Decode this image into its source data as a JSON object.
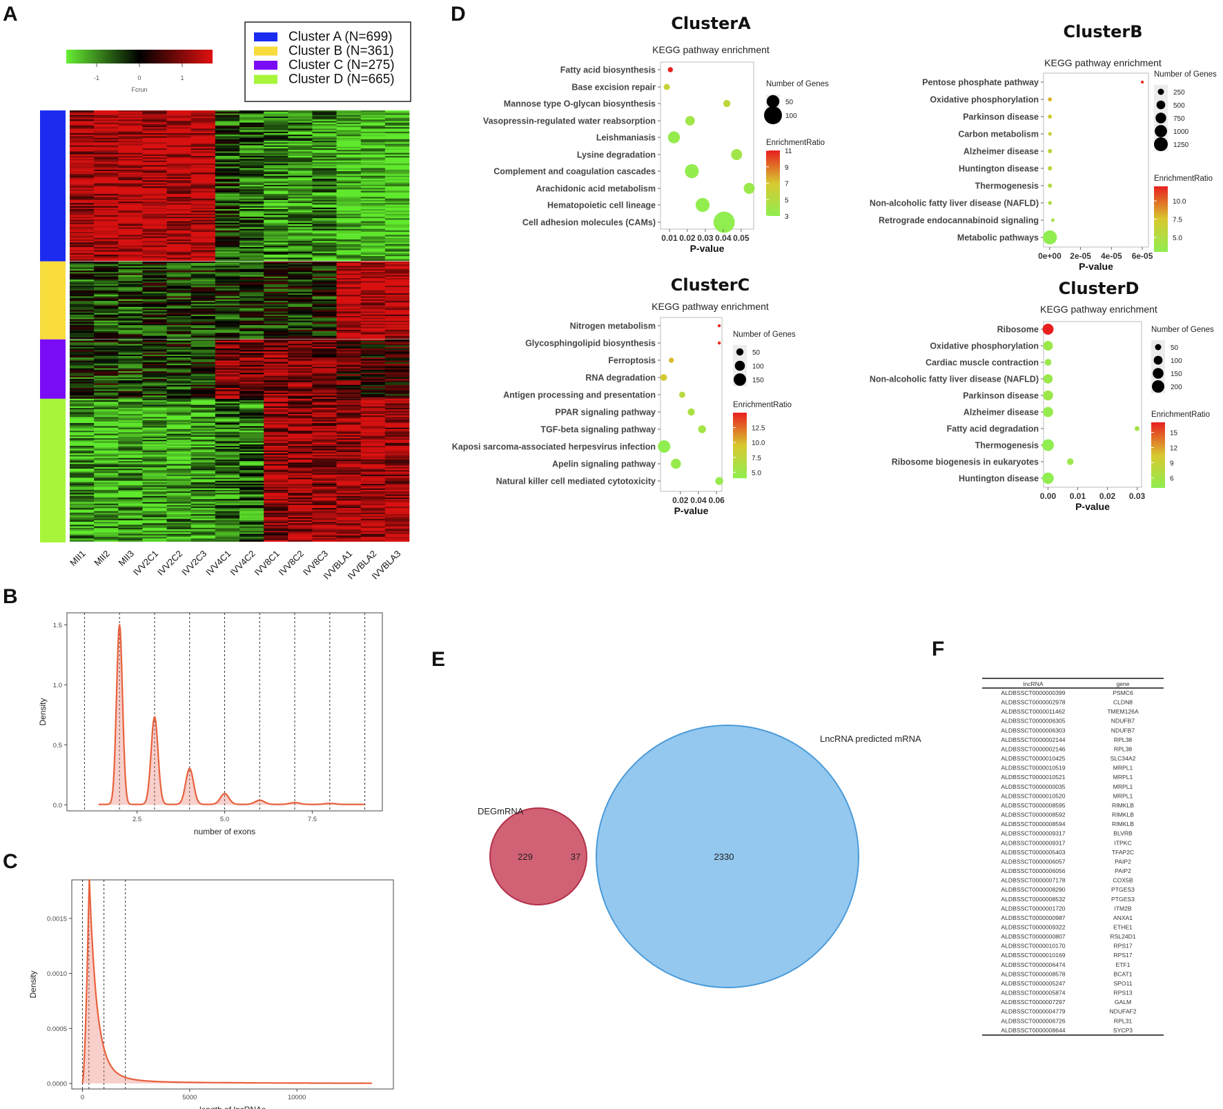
{
  "panels": {
    "A": "A",
    "B": "B",
    "C": "C",
    "D": "D",
    "E": "E",
    "F": "F"
  },
  "heatmap": {
    "scale_labels": [
      "-1",
      "0",
      "1"
    ],
    "scale_title": "Fcrun",
    "clusters": [
      {
        "name": "Cluster A (N=699)",
        "color": "#1b2cf0",
        "n": 699
      },
      {
        "name": "Cluster B (N=361)",
        "color": "#f7dc3c",
        "n": 361
      },
      {
        "name": "Cluster C (N=275)",
        "color": "#7a0cf5",
        "n": 275
      },
      {
        "name": "Cluster D (N=665)",
        "color": "#a6f53a",
        "n": 665
      }
    ],
    "samples": [
      "MII1",
      "MII2",
      "MII3",
      "IVV2C1",
      "IVV2C2",
      "IVV2C3",
      "IVV4C1",
      "IVV4C2",
      "IVV8C1",
      "IVV8C2",
      "IVV8C3",
      "IVVBLA1",
      "IVVBLA2",
      "IVVBLA3"
    ],
    "cluster_mean_pattern": [
      [
        0.8,
        0.85,
        0.9,
        0.85,
        0.9,
        0.9,
        -0.3,
        -0.4,
        -0.6,
        -0.6,
        -0.6,
        -0.9,
        -0.9,
        -0.9
      ],
      [
        -0.3,
        -0.3,
        -0.3,
        -0.2,
        -0.2,
        -0.2,
        -0.2,
        -0.2,
        -0.1,
        -0.1,
        -0.1,
        0.9,
        0.9,
        0.9
      ],
      [
        -0.2,
        -0.2,
        -0.2,
        -0.2,
        -0.2,
        -0.2,
        0.6,
        0.5,
        0.6,
        0.6,
        0.5,
        0.3,
        0.2,
        0.2
      ],
      [
        -0.7,
        -0.7,
        -0.7,
        -0.7,
        -0.7,
        -0.7,
        -0.5,
        -0.5,
        0.7,
        0.7,
        0.7,
        0.8,
        0.8,
        0.8
      ]
    ]
  },
  "chart_data": [
    {
      "type": "scatter",
      "id": "clusterA",
      "title": "ClusterA",
      "subtitle": "KEGG pathway enrichment",
      "xlabel": "P-value",
      "xlim": [
        0.005,
        0.057
      ],
      "xticks": [
        "0.01",
        "0.02",
        "0.03",
        "0.04",
        "0.05"
      ],
      "xtick_values": [
        0.01,
        0.02,
        0.03,
        0.04,
        0.05
      ],
      "points": [
        {
          "pathway": "Fatty acid biosynthesis",
          "p": 0.0105,
          "genes": 8,
          "ratio": 11
        },
        {
          "pathway": "Base excision repair",
          "p": 0.0085,
          "genes": 12,
          "ratio": 6
        },
        {
          "pathway": "Mannose type O-glycan biosynthesis",
          "p": 0.042,
          "genes": 16,
          "ratio": 5.5
        },
        {
          "pathway": "Vasopressin-regulated water reabsorption",
          "p": 0.0215,
          "genes": 28,
          "ratio": 4
        },
        {
          "pathway": "Leishmaniasis",
          "p": 0.0125,
          "genes": 45,
          "ratio": 3.3
        },
        {
          "pathway": "Lysine degradation",
          "p": 0.0475,
          "genes": 38,
          "ratio": 4
        },
        {
          "pathway": "Complement and coagulation cascades",
          "p": 0.0225,
          "genes": 60,
          "ratio": 3.2
        },
        {
          "pathway": "Arachidonic acid metabolism",
          "p": 0.0545,
          "genes": 38,
          "ratio": 3.6
        },
        {
          "pathway": "Hematopoietic cell lineage",
          "p": 0.0285,
          "genes": 60,
          "ratio": 3.1
        },
        {
          "pathway": "Cell adhesion molecules (CAMs)",
          "p": 0.0405,
          "genes": 140,
          "ratio": 3
        }
      ],
      "size_legend": {
        "title": "Number of Genes",
        "values": [
          50,
          100
        ]
      },
      "color_legend": {
        "title": "EnrichmentRatio",
        "ticks": [
          11,
          9,
          7,
          5,
          3
        ],
        "min": 3,
        "max": 11
      }
    },
    {
      "type": "scatter",
      "id": "clusterB",
      "title": "ClusterB",
      "subtitle": "KEGG pathway enrichment",
      "xlabel": "P-value",
      "xlim": [
        -4e-06,
        6.4e-05
      ],
      "xticks": [
        "0e+00",
        "2e-05",
        "4e-05",
        "6e-05"
      ],
      "xtick_values": [
        0,
        2e-05,
        4e-05,
        6e-05
      ],
      "points": [
        {
          "pathway": "Pentose phosphate pathway",
          "p": 6e-05,
          "genes": 30,
          "ratio": 11.5
        },
        {
          "pathway": "Oxidative phosphorylation",
          "p": 1e-07,
          "genes": 110,
          "ratio": 8
        },
        {
          "pathway": "Parkinson disease",
          "p": 1e-07,
          "genes": 115,
          "ratio": 7
        },
        {
          "pathway": "Carbon metabolism",
          "p": 1e-07,
          "genes": 90,
          "ratio": 6.5
        },
        {
          "pathway": "Alzheimer disease",
          "p": 1e-07,
          "genes": 120,
          "ratio": 6
        },
        {
          "pathway": "Huntington disease",
          "p": 1e-07,
          "genes": 125,
          "ratio": 5.5
        },
        {
          "pathway": "Thermogenesis",
          "p": 1e-07,
          "genes": 120,
          "ratio": 5
        },
        {
          "pathway": "Non-alcoholic fatty liver disease (NAFLD)",
          "p": 1e-07,
          "genes": 100,
          "ratio": 5
        },
        {
          "pathway": "Retrograde endocannabinoid signaling",
          "p": 2e-06,
          "genes": 80,
          "ratio": 4.5
        },
        {
          "pathway": "Metabolic pathways",
          "p": 1e-07,
          "genes": 1300,
          "ratio": 3
        }
      ],
      "size_legend": {
        "title": "Number of Genes",
        "values": [
          250,
          500,
          750,
          1000,
          1250
        ]
      },
      "color_legend": {
        "title": "EnrichmentRatio",
        "ticks": [
          10.0,
          7.5,
          5.0
        ],
        "min": 3,
        "max": 12
      }
    },
    {
      "type": "scatter",
      "id": "clusterC",
      "title": "ClusterC",
      "subtitle": "KEGG pathway enrichment",
      "xlabel": "P-value",
      "xlim": [
        -0.002,
        0.066
      ],
      "xticks": [
        "0.02",
        "0.04",
        "0.06"
      ],
      "xtick_values": [
        0.02,
        0.04,
        0.06
      ],
      "points": [
        {
          "pathway": "Nitrogen metabolism",
          "p": 0.063,
          "genes": 8,
          "ratio": 15
        },
        {
          "pathway": "Glycosphingolipid biosynthesis",
          "p": 0.063,
          "genes": 10,
          "ratio": 14.5
        },
        {
          "pathway": "Ferroptosis",
          "p": 0.01,
          "genes": 25,
          "ratio": 10
        },
        {
          "pathway": "RNA degradation",
          "p": 0.0015,
          "genes": 45,
          "ratio": 9
        },
        {
          "pathway": "Antigen processing and presentation",
          "p": 0.022,
          "genes": 38,
          "ratio": 7
        },
        {
          "pathway": "PPAR signaling pathway",
          "p": 0.032,
          "genes": 50,
          "ratio": 6
        },
        {
          "pathway": "TGF-beta signaling pathway",
          "p": 0.044,
          "genes": 60,
          "ratio": 5.5
        },
        {
          "pathway": "Kaposi sarcoma-associated herpesvirus infection",
          "p": 0.002,
          "genes": 150,
          "ratio": 4
        },
        {
          "pathway": "Apelin signaling pathway",
          "p": 0.015,
          "genes": 100,
          "ratio": 4.5
        },
        {
          "pathway": "Natural killer cell mediated cytotoxicity",
          "p": 0.063,
          "genes": 60,
          "ratio": 4.5
        }
      ],
      "size_legend": {
        "title": "Number of Genes",
        "values": [
          50,
          100,
          150
        ]
      },
      "color_legend": {
        "title": "EnrichmentRatio",
        "ticks": [
          12.5,
          10.0,
          7.5,
          5.0
        ],
        "min": 4,
        "max": 15
      }
    },
    {
      "type": "scatter",
      "id": "clusterD",
      "title": "ClusterD",
      "subtitle": "KEGG pathway enrichment",
      "xlabel": "P-value",
      "xlim": [
        -0.0015,
        0.0315
      ],
      "xticks": [
        "0.00",
        "0.01",
        "0.02",
        "0.03"
      ],
      "xtick_values": [
        0,
        0.01,
        0.02,
        0.03
      ],
      "points": [
        {
          "pathway": "Ribosome",
          "p": 0.0,
          "genes": 160,
          "ratio": 17
        },
        {
          "pathway": "Oxidative phosphorylation",
          "p": 0.0,
          "genes": 120,
          "ratio": 5
        },
        {
          "pathway": "Cardiac muscle contraction",
          "p": 0.0,
          "genes": 60,
          "ratio": 5
        },
        {
          "pathway": "Non-alcoholic fatty liver disease (NAFLD)",
          "p": 0.0,
          "genes": 115,
          "ratio": 5
        },
        {
          "pathway": "Parkinson disease",
          "p": 0.0,
          "genes": 130,
          "ratio": 5
        },
        {
          "pathway": "Alzheimer disease",
          "p": 0.0,
          "genes": 135,
          "ratio": 4.5
        },
        {
          "pathway": "Fatty acid degradation",
          "p": 0.03,
          "genes": 30,
          "ratio": 6
        },
        {
          "pathway": "Thermogenesis",
          "p": 0.0,
          "genes": 180,
          "ratio": 4
        },
        {
          "pathway": "Ribosome biogenesis in eukaryotes",
          "p": 0.0075,
          "genes": 55,
          "ratio": 5
        },
        {
          "pathway": "Huntington disease",
          "p": 0.0,
          "genes": 170,
          "ratio": 4
        }
      ],
      "size_legend": {
        "title": "Number of Genes",
        "values": [
          50,
          100,
          150,
          200
        ]
      },
      "color_legend": {
        "title": "EnrichmentRatio",
        "ticks": [
          15,
          12,
          9,
          6
        ],
        "min": 4,
        "max": 17
      }
    },
    {
      "type": "area",
      "id": "exons",
      "xlabel": "number of exons",
      "ylabel": "Density",
      "xlim": [
        0.5,
        9.5
      ],
      "ylim": [
        -0.05,
        1.6
      ],
      "xticks": [
        "2.5",
        "5.0",
        "7.5"
      ],
      "xtick_values": [
        2.5,
        5.0,
        7.5
      ],
      "yticks": [
        "0.0",
        "0.5",
        "1.0",
        "1.5"
      ],
      "ytick_values": [
        0,
        0.5,
        1.0,
        1.5
      ],
      "peaks": [
        {
          "x": 2,
          "y": 1.5
        },
        {
          "x": 3,
          "y": 0.73
        },
        {
          "x": 4,
          "y": 0.3
        },
        {
          "x": 5,
          "y": 0.09
        },
        {
          "x": 6,
          "y": 0.035
        },
        {
          "x": 7,
          "y": 0.015
        },
        {
          "x": 8,
          "y": 0.008
        }
      ],
      "vlines": [
        1,
        2,
        3,
        4,
        5,
        6,
        7,
        8,
        9
      ]
    },
    {
      "type": "area",
      "id": "length",
      "xlabel": "length of lncRNAs",
      "ylabel": "Density",
      "xlim": [
        -500,
        14500
      ],
      "ylim": [
        -5e-05,
        0.00185
      ],
      "xticks": [
        "0",
        "5000",
        "10000"
      ],
      "xtick_values": [
        0,
        5000,
        10000
      ],
      "yticks": [
        "0.0000",
        "0.0005",
        "0.0010",
        "0.0015"
      ],
      "ytick_values": [
        0,
        0.0005,
        0.001,
        0.0015
      ],
      "peak": {
        "x": 300,
        "y": 0.00175
      },
      "vlines": [
        0,
        300,
        1000,
        2000
      ]
    }
  ],
  "venn": {
    "left": {
      "label": "DEGmRNA",
      "only": 229,
      "color": "#c9475e"
    },
    "right": {
      "label": "LncRNA predicted mRNA",
      "only": 2330,
      "color": "#5aaae6"
    },
    "overlap": 37
  },
  "table": {
    "headers": [
      "lncRNA",
      "gene"
    ],
    "rows": [
      [
        "ALDBSSCT0000000399",
        "PSMC6"
      ],
      [
        "ALDBSSCT0000002978",
        "CLDN8"
      ],
      [
        "ALDBSSCT0000011462",
        "TMEM126A"
      ],
      [
        "ALDBSSCT0000006305",
        "NDUFB7"
      ],
      [
        "ALDBSSCT0000006303",
        "NDUFB7"
      ],
      [
        "ALDBSSCT0000002144",
        "RPL38"
      ],
      [
        "ALDBSSCT0000002146",
        "RPL38"
      ],
      [
        "ALDBSSCT0000010425",
        "SLC34A2"
      ],
      [
        "ALDBSSCT0000010519",
        "MRPL1"
      ],
      [
        "ALDBSSCT0000010521",
        "MRPL1"
      ],
      [
        "ALDBSSCT0000000035",
        "MRPL1"
      ],
      [
        "ALDBSSCT0000010520",
        "MRPL1"
      ],
      [
        "ALDBSSCT0000008595",
        "RIMKLB"
      ],
      [
        "ALDBSSCT0000008592",
        "RIMKLB"
      ],
      [
        "ALDBSSCT0000008594",
        "RIMKLB"
      ],
      [
        "ALDBSSCT0000009317",
        "BLVRB"
      ],
      [
        "ALDBSSCT0000009317",
        "ITPKC"
      ],
      [
        "ALDBSSCT0000005403",
        "TFAP2C"
      ],
      [
        "ALDBSSCT0000006057",
        "PAIP2"
      ],
      [
        "ALDBSSCT0000006056",
        "PAIP2"
      ],
      [
        "ALDBSSCT0000007178",
        "COX5B"
      ],
      [
        "ALDBSSCT0000008290",
        "PTGES3"
      ],
      [
        "ALDBSSCT0000008532",
        "PTGES3"
      ],
      [
        "ALDBSSCT0000001720",
        "ITM2B"
      ],
      [
        "ALDBSSCT0000000987",
        "ANXA1"
      ],
      [
        "ALDBSSCT0000009322",
        "ETHE1"
      ],
      [
        "ALDBSSCT0000000807",
        "RSL24D1"
      ],
      [
        "ALDBSSCT0000010170",
        "RPS17"
      ],
      [
        "ALDBSSCT0000010169",
        "RPS17"
      ],
      [
        "ALDBSSCT0000006474",
        "ETF1"
      ],
      [
        "ALDBSSCT0000008578",
        "BCAT1"
      ],
      [
        "ALDBSSCT0000005247",
        "SPO11"
      ],
      [
        "ALDBSSCT0000005874",
        "RPS13"
      ],
      [
        "ALDBSSCT0000007297",
        "GALM"
      ],
      [
        "ALDBSSCT0000004779",
        "NDUFAF2"
      ],
      [
        "ALDBSSCT0000006726",
        "RPL31"
      ],
      [
        "ALDBSSCT0000008644",
        "SYCP3"
      ]
    ]
  }
}
